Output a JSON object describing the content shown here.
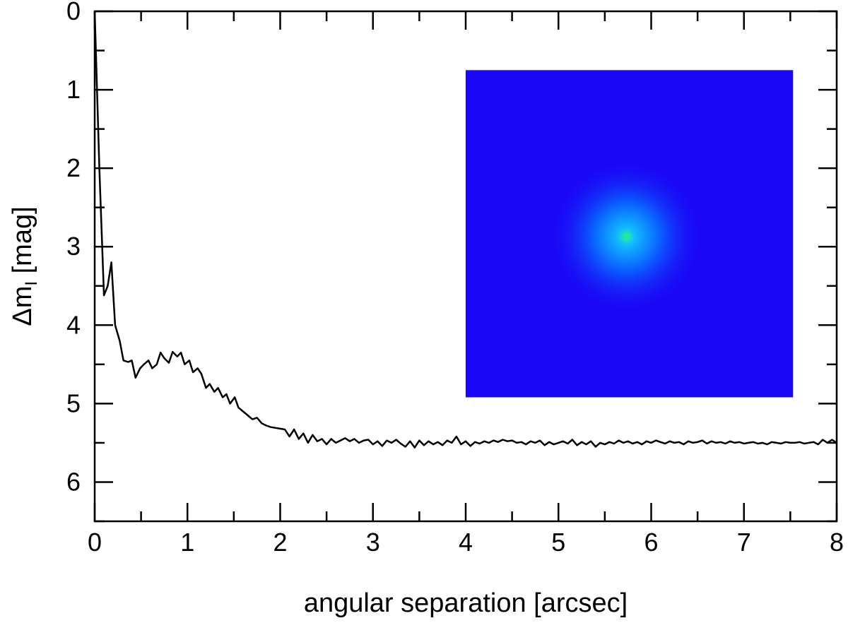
{
  "chart_data": {
    "type": "line",
    "xlabel": "angular separation [arcsec]",
    "ylabel": {
      "prefix": "Δm",
      "subscript": "I",
      "suffix": " [mag]"
    },
    "xlim": [
      0,
      8
    ],
    "ylim": [
      0,
      6.5
    ],
    "y_inverted": true,
    "x_ticks": [
      "0",
      "1",
      "2",
      "3",
      "4",
      "5",
      "6",
      "7",
      "8"
    ],
    "y_ticks": [
      "0",
      "1",
      "2",
      "3",
      "4",
      "5",
      "6"
    ],
    "grid": false,
    "line_color": "#000000",
    "series": [
      {
        "x": [
          0.0,
          0.05,
          0.1,
          0.14,
          0.18,
          0.22,
          0.27,
          0.31,
          0.36,
          0.4,
          0.44,
          0.49,
          0.53,
          0.58,
          0.62,
          0.67,
          0.71,
          0.75,
          0.8,
          0.84,
          0.89,
          0.93,
          0.97,
          1.02,
          1.06,
          1.11,
          1.15,
          1.2,
          1.24,
          1.29,
          1.33,
          1.38,
          1.42,
          1.46,
          1.51,
          1.55,
          1.6,
          1.65,
          1.7,
          1.75,
          1.8,
          1.85,
          1.9,
          1.95,
          2.0,
          2.05,
          2.1,
          2.15,
          2.2,
          2.25,
          2.3,
          2.35,
          2.4,
          2.45,
          2.5,
          2.55,
          2.6,
          2.65,
          2.7,
          2.75,
          2.8,
          2.85,
          2.9,
          2.95,
          3.0,
          3.05,
          3.1,
          3.15,
          3.2,
          3.25,
          3.3,
          3.35,
          3.4,
          3.45,
          3.5,
          3.55,
          3.6,
          3.65,
          3.7,
          3.75,
          3.8,
          3.85,
          3.9,
          3.95,
          4.0,
          4.05,
          4.1,
          4.15,
          4.2,
          4.25,
          4.3,
          4.35,
          4.4,
          4.45,
          4.5,
          4.55,
          4.6,
          4.65,
          4.7,
          4.75,
          4.8,
          4.85,
          4.9,
          4.95,
          5.0,
          5.05,
          5.1,
          5.15,
          5.2,
          5.25,
          5.3,
          5.35,
          5.4,
          5.45,
          5.5,
          5.55,
          5.6,
          5.65,
          5.7,
          5.75,
          5.8,
          5.85,
          5.9,
          5.95,
          6.0,
          6.05,
          6.1,
          6.15,
          6.2,
          6.25,
          6.3,
          6.35,
          6.4,
          6.45,
          6.5,
          6.55,
          6.6,
          6.65,
          6.7,
          6.75,
          6.8,
          6.85,
          6.9,
          6.95,
          7.0,
          7.05,
          7.1,
          7.15,
          7.2,
          7.25,
          7.3,
          7.35,
          7.4,
          7.45,
          7.5,
          7.55,
          7.6,
          7.65,
          7.7,
          7.75,
          7.8,
          7.85,
          7.9,
          7.95,
          8.0
        ],
        "y": [
          0.0,
          2.0,
          3.62,
          3.5,
          3.2,
          4.0,
          4.2,
          4.45,
          4.47,
          4.45,
          4.67,
          4.55,
          4.5,
          4.45,
          4.55,
          4.5,
          4.35,
          4.42,
          4.48,
          4.34,
          4.4,
          4.35,
          4.5,
          4.45,
          4.6,
          4.55,
          4.62,
          4.8,
          4.75,
          4.85,
          4.8,
          4.92,
          4.88,
          5.0,
          4.92,
          5.05,
          5.1,
          5.15,
          5.2,
          5.18,
          5.25,
          5.28,
          5.3,
          5.31,
          5.32,
          5.33,
          5.42,
          5.33,
          5.45,
          5.38,
          5.5,
          5.4,
          5.48,
          5.45,
          5.52,
          5.45,
          5.5,
          5.47,
          5.44,
          5.48,
          5.45,
          5.5,
          5.47,
          5.46,
          5.52,
          5.48,
          5.54,
          5.47,
          5.5,
          5.46,
          5.51,
          5.55,
          5.48,
          5.56,
          5.47,
          5.53,
          5.48,
          5.52,
          5.49,
          5.53,
          5.47,
          5.5,
          5.42,
          5.52,
          5.48,
          5.54,
          5.49,
          5.51,
          5.48,
          5.5,
          5.47,
          5.49,
          5.46,
          5.48,
          5.47,
          5.5,
          5.49,
          5.52,
          5.48,
          5.5,
          5.47,
          5.53,
          5.49,
          5.52,
          5.5,
          5.48,
          5.51,
          5.46,
          5.53,
          5.49,
          5.52,
          5.48,
          5.55,
          5.5,
          5.52,
          5.49,
          5.51,
          5.47,
          5.5,
          5.48,
          5.51,
          5.49,
          5.52,
          5.48,
          5.5,
          5.47,
          5.49,
          5.51,
          5.48,
          5.5,
          5.49,
          5.52,
          5.48,
          5.5,
          5.49,
          5.47,
          5.51,
          5.48,
          5.5,
          5.49,
          5.51,
          5.48,
          5.5,
          5.49,
          5.51,
          5.5,
          5.49,
          5.51,
          5.5,
          5.52,
          5.49,
          5.5,
          5.51,
          5.49,
          5.5,
          5.5,
          5.49,
          5.51,
          5.5,
          5.49,
          5.52,
          5.46,
          5.5,
          5.46,
          5.5
        ]
      }
    ],
    "inset": {
      "type": "image",
      "description_icon": "psf-image-icon",
      "x_range": [
        4.0,
        7.53
      ],
      "y_range": [
        0.75,
        4.92
      ],
      "background_color": "#1a07f5",
      "core_color": "#20e8a0",
      "halo_color": "#0f67ff"
    }
  }
}
